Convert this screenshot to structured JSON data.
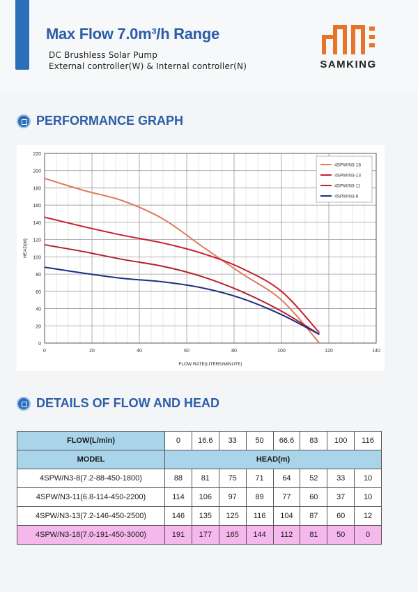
{
  "header": {
    "title": "Max Flow 7.0m³/h Range",
    "subtitle_line1": "DC Brushless Solar Pump",
    "subtitle_line2": "External controller(W) & Internal controller(N)",
    "brand": "SAMKING",
    "brand_color": "#e8742a",
    "accent_color": "#2a6fb8"
  },
  "sections": {
    "performance": "PERFORMANCE GRAPH",
    "details": "DETAILS OF FLOW AND HEAD"
  },
  "chart_data": {
    "type": "line",
    "title": "",
    "xlabel": "FLOW RATE(LITERS/MINUTE)",
    "ylabel": "HEAD(M)",
    "xlim": [
      0,
      140
    ],
    "ylim": [
      0,
      220
    ],
    "xticks": [
      0,
      20,
      40,
      60,
      80,
      100,
      120,
      140
    ],
    "yticks": [
      0,
      20,
      40,
      60,
      80,
      100,
      120,
      140,
      160,
      180,
      200,
      220
    ],
    "grid": true,
    "legend_position": "top-right",
    "series": [
      {
        "name": "4SPW/N3-18",
        "color": "#e07a5f",
        "x": [
          0,
          16.6,
          33,
          50,
          66.6,
          83,
          100,
          116
        ],
        "y": [
          191,
          177,
          165,
          144,
          112,
          81,
          50,
          0
        ]
      },
      {
        "name": "4SPW/N3-13",
        "color": "#c8202e",
        "x": [
          0,
          16.6,
          33,
          50,
          66.6,
          83,
          100,
          116
        ],
        "y": [
          146,
          135,
          125,
          116,
          104,
          87,
          60,
          12
        ]
      },
      {
        "name": "4SPW/N3-11",
        "color": "#b3232d",
        "x": [
          0,
          16.6,
          33,
          50,
          66.6,
          83,
          100,
          116
        ],
        "y": [
          114,
          106,
          97,
          89,
          77,
          60,
          37,
          10
        ]
      },
      {
        "name": "4SPW/N3-8",
        "color": "#1c2e80",
        "x": [
          0,
          16.6,
          33,
          50,
          66.6,
          83,
          100,
          116
        ],
        "y": [
          88,
          81,
          75,
          71,
          64,
          52,
          33,
          10
        ]
      }
    ]
  },
  "table": {
    "flow_label": "FLOW(L/min)",
    "flows": [
      "0",
      "16.6",
      "33",
      "50",
      "66.6",
      "83",
      "100",
      "116"
    ],
    "model_label": "MODEL",
    "head_label": "HEAD(m)",
    "rows": [
      {
        "model": "4SPW/N3-8(7.2-88-450-1800)",
        "values": [
          "88",
          "81",
          "75",
          "71",
          "64",
          "52",
          "33",
          "10"
        ]
      },
      {
        "model": "4SPW/N3-11(6.8-114-450-2200)",
        "values": [
          "114",
          "106",
          "97",
          "89",
          "77",
          "60",
          "37",
          "10"
        ]
      },
      {
        "model": "4SPW/N3-13(7.2-146-450-2500)",
        "values": [
          "146",
          "135",
          "125",
          "116",
          "104",
          "87",
          "60",
          "12"
        ]
      },
      {
        "model": "4SPW/N3-18(7.0-191-450-3000)",
        "values": [
          "191",
          "177",
          "165",
          "144",
          "112",
          "81",
          "50",
          "0"
        ],
        "highlighted": true
      }
    ],
    "header_color": "#a9d4e9",
    "highlight_color": "#f5b8ec"
  }
}
